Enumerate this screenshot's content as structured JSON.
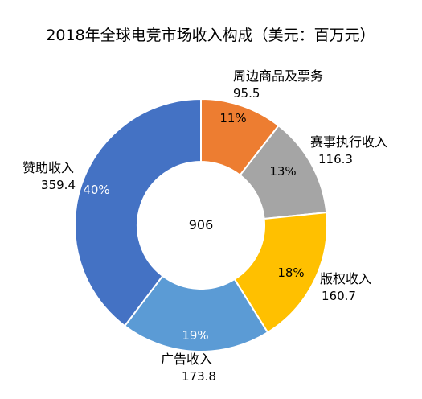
{
  "chart_data": {
    "type": "pie",
    "variant": "donut",
    "title": "2018年全球电竞市场收入构成（美元：百万元）",
    "center_label": "906",
    "legend": "none",
    "slices": [
      {
        "label": "周边商品及票务",
        "value": 95.5,
        "value_text": "95.5",
        "percent_text": "11%",
        "color": "#ED7D31"
      },
      {
        "label": "赛事执行收入",
        "value": 116.3,
        "value_text": "116.3",
        "percent_text": "13%",
        "color": "#A5A5A5"
      },
      {
        "label": "版权收入",
        "value": 160.7,
        "value_text": "160.7",
        "percent_text": "18%",
        "color": "#FFC000"
      },
      {
        "label": "广告收入",
        "value": 173.8,
        "value_text": "173.8",
        "percent_text": "19%",
        "color": "#5B9BD5"
      },
      {
        "label": "赞助收入",
        "value": 359.4,
        "value_text": "359.4",
        "percent_text": "40%",
        "color": "#4472C4"
      }
    ]
  }
}
